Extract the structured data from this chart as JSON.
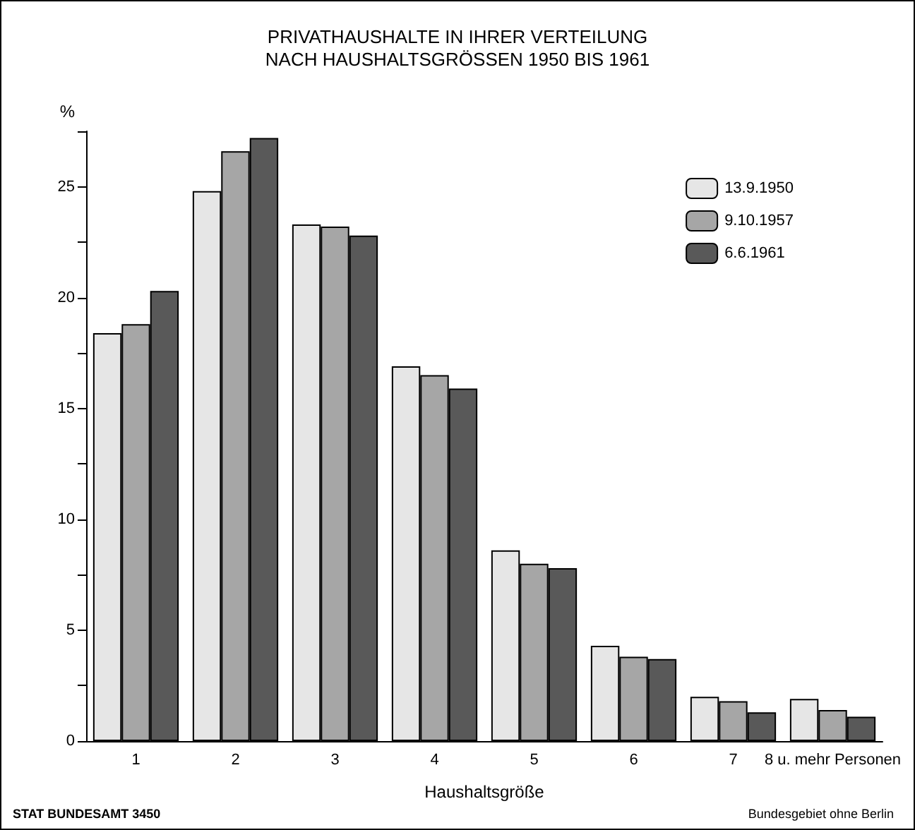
{
  "chart_data": {
    "type": "bar",
    "title": "PRIVATHAUSHALTE IN IHRER VERTEILUNG\nNACH HAUSHALTSGRÖSSEN 1950 BIS 1961",
    "xlabel": "Haushaltsgröße",
    "ylabel": "%",
    "categories": [
      "1",
      "2",
      "3",
      "4",
      "5",
      "6",
      "7",
      "8 u. mehr Personen"
    ],
    "series": [
      {
        "name": "13.9.1950",
        "color": "#e6e6e6",
        "values": [
          18.4,
          24.8,
          23.3,
          16.9,
          8.6,
          4.3,
          2.0,
          1.9
        ]
      },
      {
        "name": "9.10.1957",
        "color": "#a6a6a6",
        "values": [
          18.8,
          26.6,
          23.2,
          16.5,
          8.0,
          3.8,
          1.8,
          1.4
        ]
      },
      {
        "name": "6.6.1961",
        "color": "#595959",
        "values": [
          20.3,
          27.2,
          22.8,
          15.9,
          7.8,
          3.7,
          1.3,
          1.1
        ]
      }
    ],
    "ylim": [
      0,
      27.5
    ],
    "yticks": [
      0,
      {
        "value": 2.5,
        "label": null
      },
      5,
      {
        "value": 7.5,
        "label": null
      },
      10,
      {
        "value": 12.5,
        "label": null
      },
      15,
      {
        "value": 17.5,
        "label": null
      },
      20,
      {
        "value": 22.5,
        "label": null
      },
      25,
      {
        "value": 27.5,
        "label": null
      }
    ],
    "grid": false,
    "legend": "top right",
    "annotations": [
      "STAT BUNDESAMT 3450",
      "Bundesgebiet ohne Berlin"
    ]
  }
}
